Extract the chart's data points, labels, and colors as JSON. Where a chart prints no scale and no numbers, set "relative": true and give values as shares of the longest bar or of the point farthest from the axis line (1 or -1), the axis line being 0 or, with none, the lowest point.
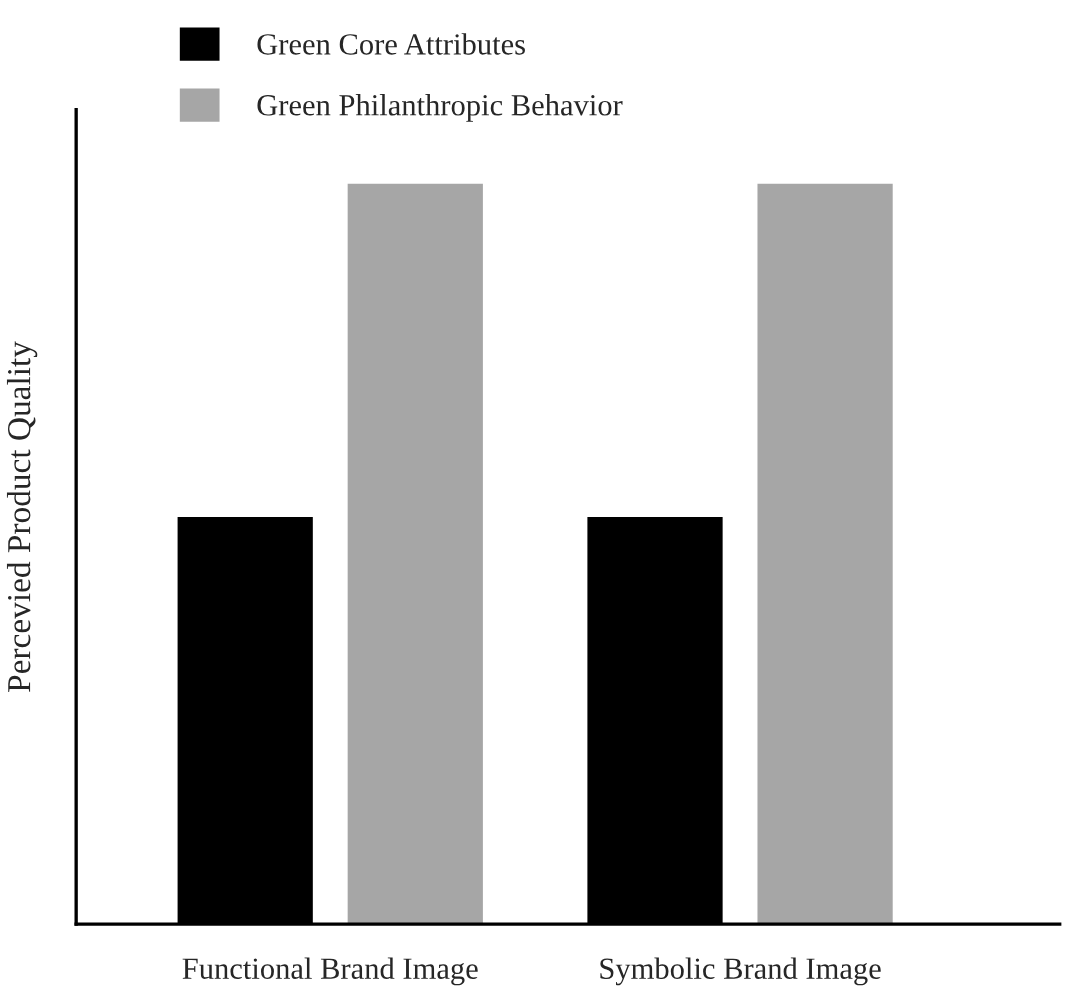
{
  "chart_data": {
    "type": "bar",
    "relative": true,
    "ylabel": "Percevied Product Quality",
    "categories": [
      "Functional Brand Image",
      "Symbolic Brand Image"
    ],
    "series": [
      {
        "name": "Green Core Attributes",
        "color": "#000000",
        "values": [
          0.55,
          0.55
        ]
      },
      {
        "name": "Green Philanthropic Behavior",
        "color": "#a6a6a6",
        "values": [
          1,
          1
        ]
      }
    ],
    "legend": "top left",
    "grid": false
  }
}
